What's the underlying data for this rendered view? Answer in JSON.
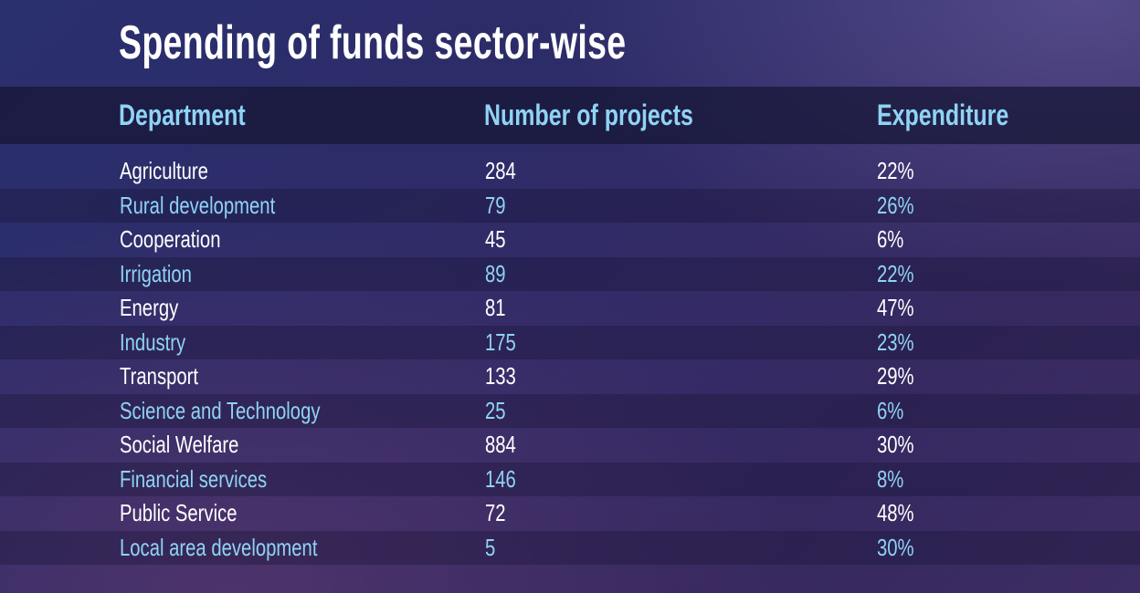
{
  "title": "Spending of funds sector-wise",
  "chart_data": {
    "type": "table",
    "title": "Spending of funds sector-wise",
    "columns": [
      "Department",
      "Number of projects",
      "Expenditure"
    ],
    "rows": [
      {
        "department": "Agriculture",
        "projects": "284",
        "expenditure": "22%"
      },
      {
        "department": "Rural development",
        "projects": "79",
        "expenditure": "26%"
      },
      {
        "department": "Cooperation",
        "projects": "45",
        "expenditure": "6%"
      },
      {
        "department": "Irrigation",
        "projects": "89",
        "expenditure": "22%"
      },
      {
        "department": "Energy",
        "projects": "81",
        "expenditure": "47%"
      },
      {
        "department": "Industry",
        "projects": "175",
        "expenditure": "23%"
      },
      {
        "department": "Transport",
        "projects": "133",
        "expenditure": "29%"
      },
      {
        "department": "Science and Technology",
        "projects": "25",
        "expenditure": "6%"
      },
      {
        "department": "Social Welfare",
        "projects": "884",
        "expenditure": "30%"
      },
      {
        "department": "Financial services",
        "projects": "146",
        "expenditure": "8%"
      },
      {
        "department": "Public Service",
        "projects": "72",
        "expenditure": "48%"
      },
      {
        "department": "Local area development",
        "projects": "5",
        "expenditure": "30%"
      }
    ]
  },
  "colors": {
    "title": "#ffffff",
    "header_text": "#8fd3f4",
    "accent_row_text": "#8fd3f4",
    "plain_row_text": "#ffffff"
  }
}
